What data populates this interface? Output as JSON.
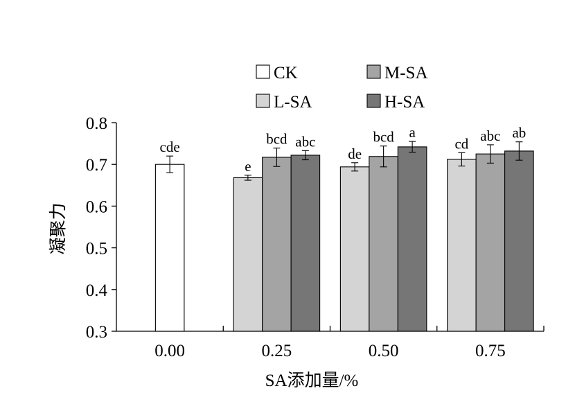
{
  "chart_data": {
    "type": "bar",
    "title": "",
    "xlabel": "SA添加量/%",
    "ylabel": "凝聚力",
    "ylim": [
      0.3,
      0.8
    ],
    "yticks": [
      "0.3",
      "0.4",
      "0.5",
      "0.6",
      "0.7",
      "0.8"
    ],
    "groups": [
      "0.00",
      "0.25",
      "0.50",
      "0.75"
    ],
    "grid": false,
    "legend_position": "top",
    "series": [
      {
        "name": "CK",
        "color": "#ffffff",
        "values": [
          0.7,
          null,
          null,
          null
        ],
        "errors": [
          0.02,
          null,
          null,
          null
        ],
        "sig": [
          "cde",
          null,
          null,
          null
        ]
      },
      {
        "name": "L-SA",
        "color": "#d4d4d4",
        "values": [
          null,
          0.668,
          0.694,
          0.712
        ],
        "errors": [
          null,
          0.006,
          0.01,
          0.016
        ],
        "sig": [
          null,
          "e",
          "de",
          "cd"
        ]
      },
      {
        "name": "M-SA",
        "color": "#a4a4a4",
        "values": [
          null,
          0.717,
          0.719,
          0.725
        ],
        "errors": [
          null,
          0.022,
          0.025,
          0.022
        ],
        "sig": [
          null,
          "bcd",
          "bcd",
          "abc"
        ]
      },
      {
        "name": "H-SA",
        "color": "#767676",
        "values": [
          null,
          0.722,
          0.742,
          0.732
        ],
        "errors": [
          null,
          0.011,
          0.013,
          0.022
        ],
        "sig": [
          null,
          "abc",
          "a",
          "ab"
        ]
      }
    ]
  }
}
